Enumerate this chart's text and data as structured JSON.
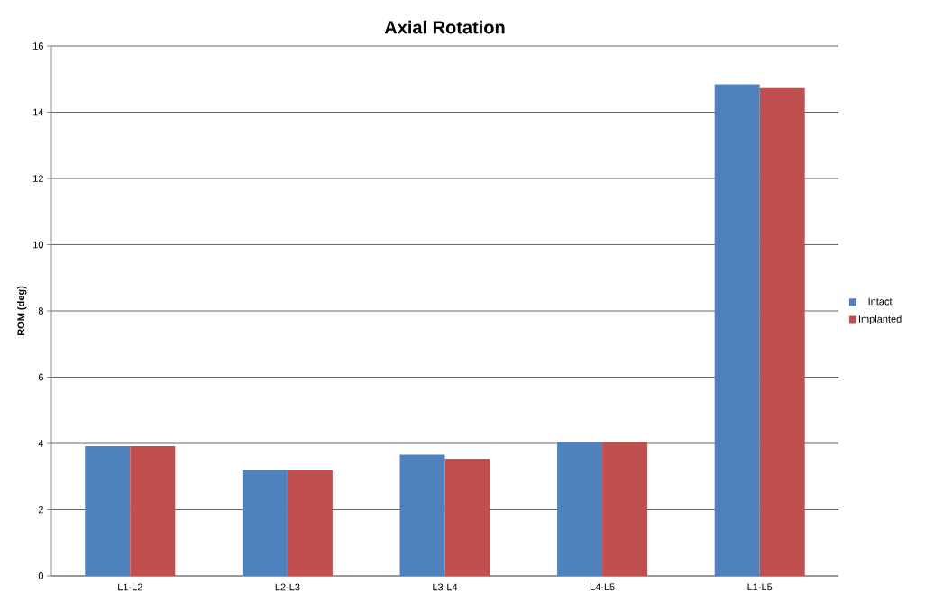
{
  "chart_data": {
    "type": "bar",
    "title": "Axial Rotation",
    "ylabel": "ROM (deg)",
    "categories": [
      "L1-L2",
      "L2-L3",
      "L3-L4",
      "L4-L5",
      "L1-L5"
    ],
    "series": [
      {
        "name": "Intact",
        "color": "#4f81bd",
        "values": [
          3.92,
          3.18,
          3.66,
          4.04,
          14.84
        ]
      },
      {
        "name": "Implanted",
        "color": "#c0504d",
        "values": [
          3.92,
          3.18,
          3.54,
          4.04,
          14.73
        ]
      }
    ],
    "ylim": [
      0,
      16
    ],
    "yticks": [
      0,
      2,
      4,
      6,
      8,
      10,
      12,
      14,
      16
    ],
    "grid": "y",
    "legend": "right"
  }
}
